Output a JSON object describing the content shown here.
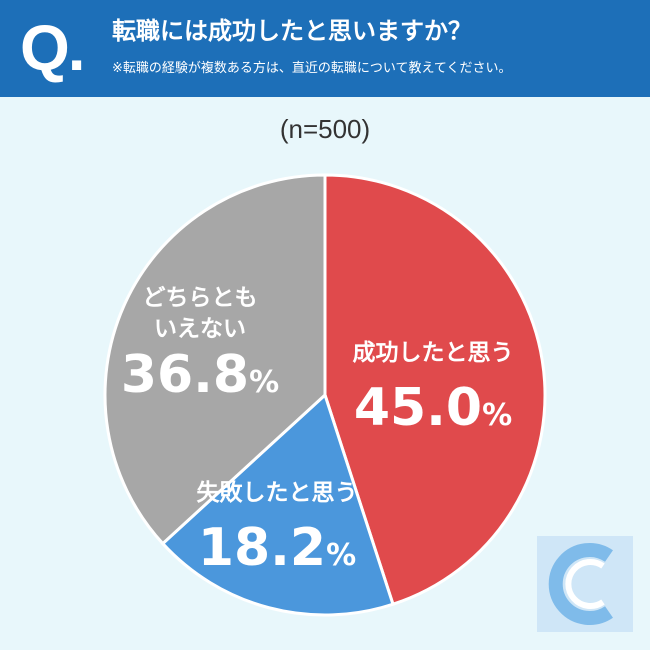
{
  "header": {
    "q_mark": "Q.",
    "title": "転職には成功したと思いますか？",
    "subtitle": "※転職の経験が複数ある方は、直近の転職について教えてください。"
  },
  "sample_label": "(n=500)",
  "colors": {
    "header_bg": "#1d6fb8",
    "page_bg": "#e8f7fb",
    "success": "#e04a4c",
    "failure": "#4b97dc",
    "neither": "#a7a7a7"
  },
  "chart_data": {
    "type": "pie",
    "start": "12 o'clock",
    "direction": "clockwise",
    "slices": [
      {
        "label": "成功したと思う",
        "label_lines": [
          "成功したと思う"
        ],
        "value": 45.0,
        "value_text": "45.0",
        "unit": "%",
        "color": "#e04a4c"
      },
      {
        "label": "失敗したと思う",
        "label_lines": [
          "失敗したと思う"
        ],
        "value": 18.2,
        "value_text": "18.2",
        "unit": "%",
        "color": "#4b97dc"
      },
      {
        "label": "どちらともいえない",
        "label_lines": [
          "どちらとも",
          "いえない"
        ],
        "value": 36.8,
        "value_text": "36.8",
        "unit": "%",
        "color": "#a7a7a7"
      }
    ]
  }
}
